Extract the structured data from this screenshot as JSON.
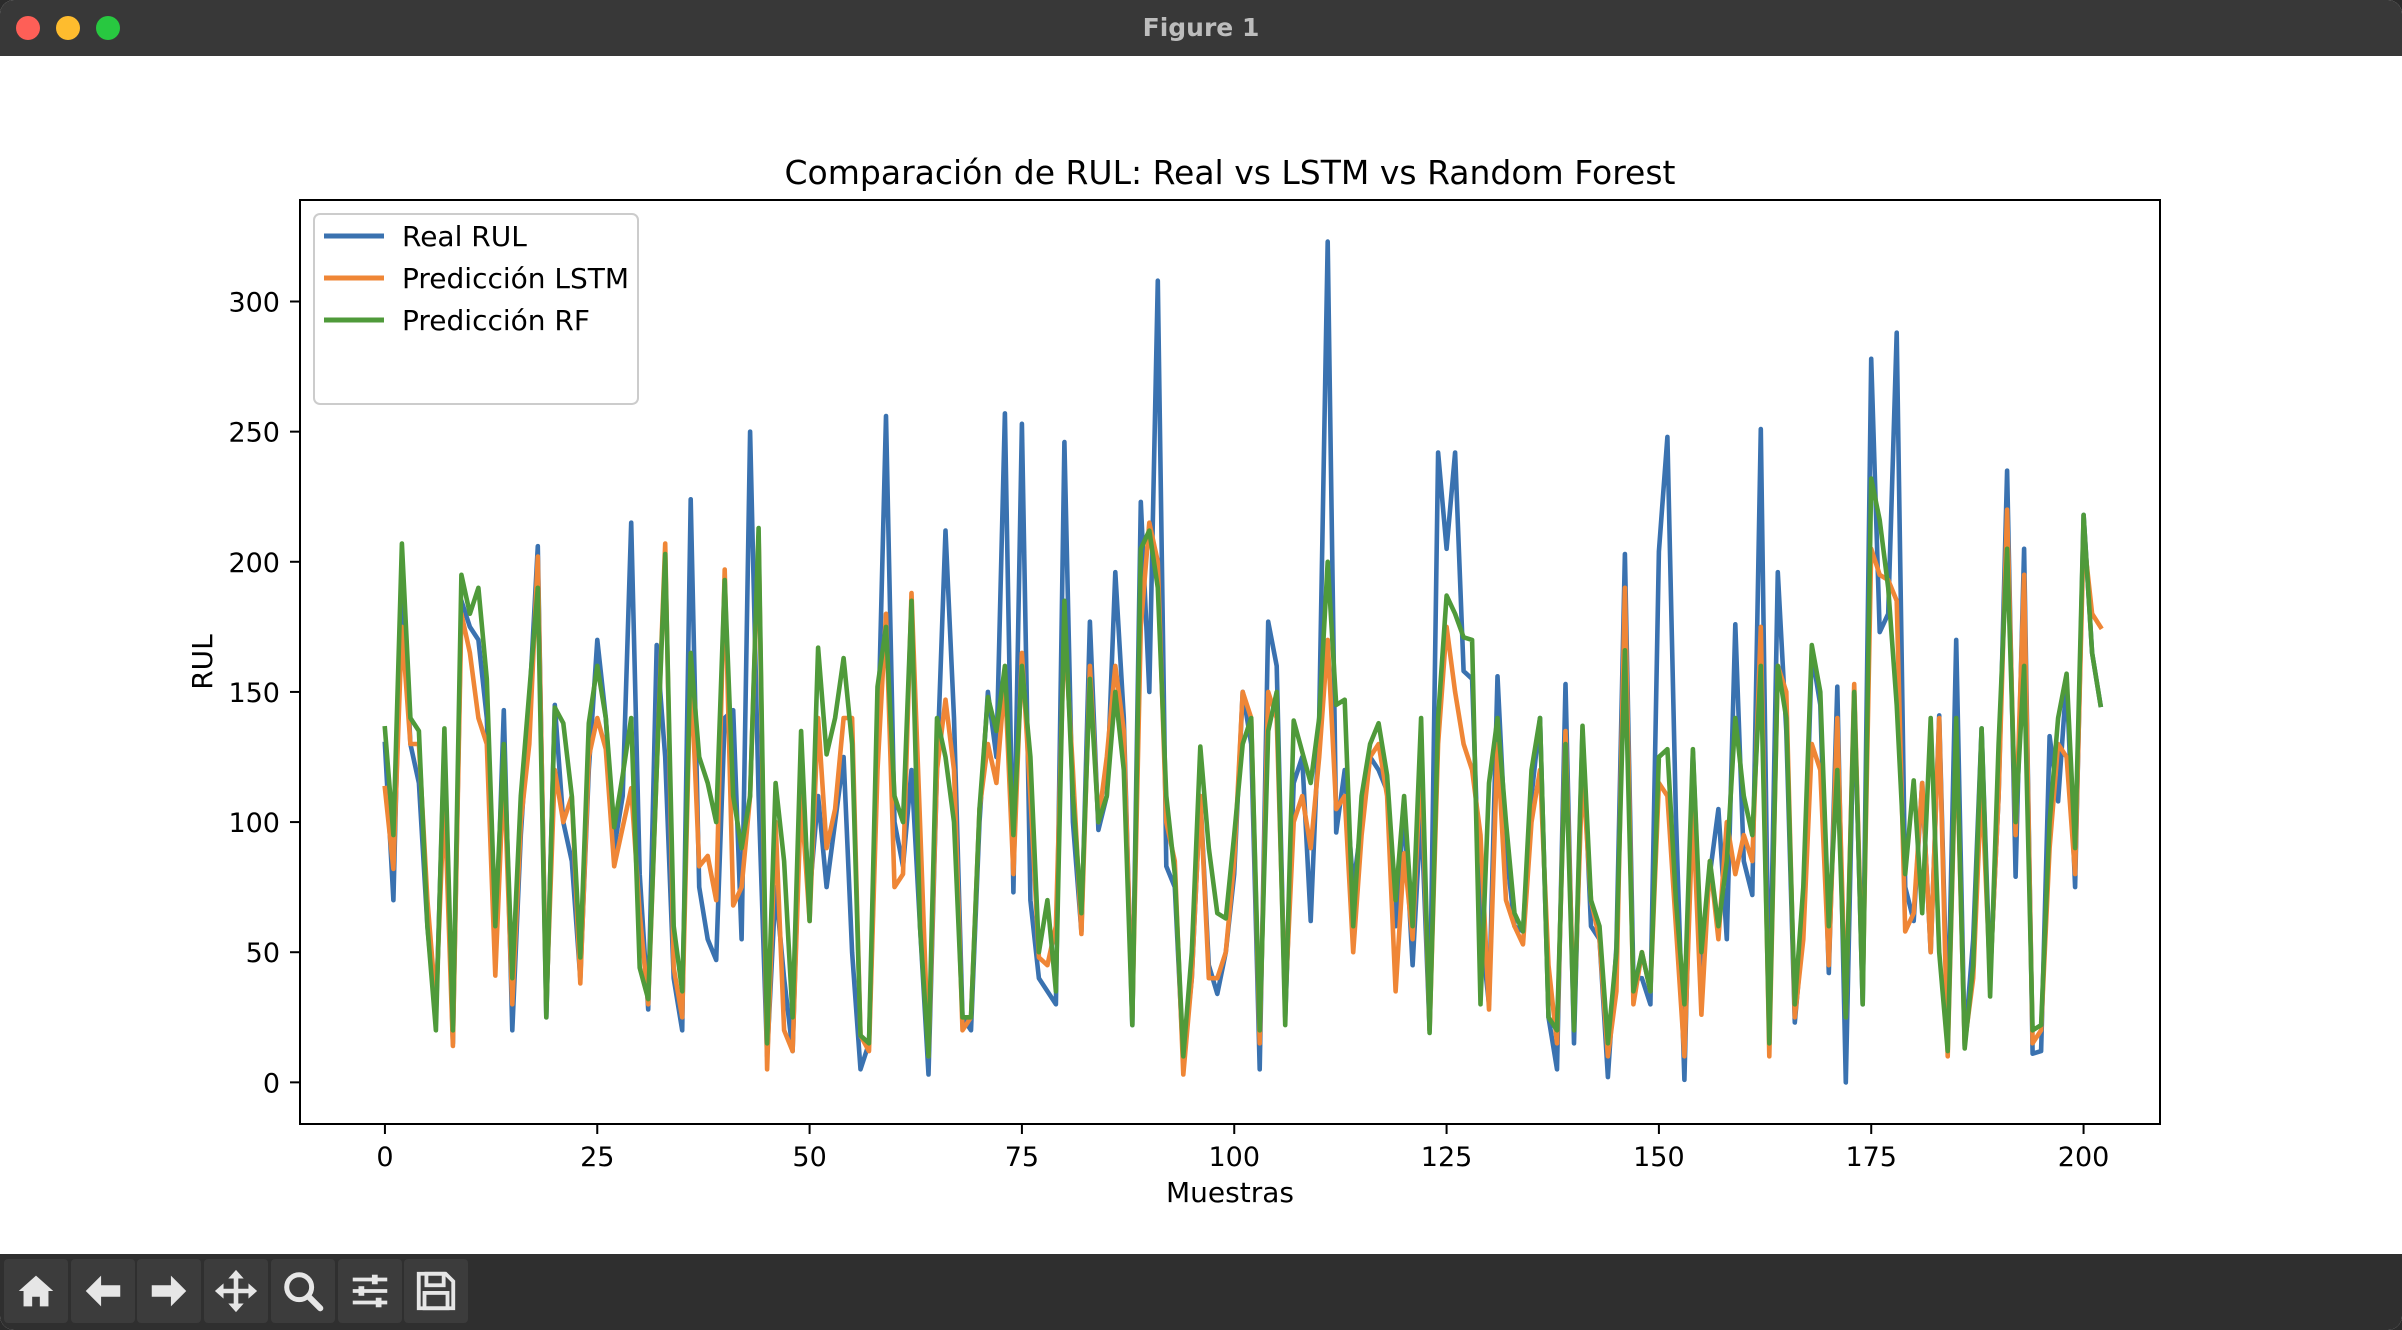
{
  "window": {
    "title": "Figure 1"
  },
  "toolbar": {
    "buttons": [
      {
        "icon": "home-icon",
        "label": "Home"
      },
      {
        "icon": "back-arrow-icon",
        "label": "Back"
      },
      {
        "icon": "forward-arrow-icon",
        "label": "Forward"
      },
      {
        "icon": "pan-icon",
        "label": "Pan"
      },
      {
        "icon": "zoom-icon",
        "label": "Zoom"
      },
      {
        "icon": "configure-subplots-icon",
        "label": "Subplots"
      },
      {
        "icon": "save-icon",
        "label": "Save"
      }
    ]
  },
  "chart_data": {
    "type": "line",
    "title": "Comparación de RUL: Real vs LSTM vs Random Forest",
    "xlabel": "Muestras",
    "ylabel": "RUL",
    "xlim": [
      -10,
      209
    ],
    "ylim": [
      -16,
      339
    ],
    "xticks": [
      0,
      25,
      50,
      75,
      100,
      125,
      150,
      175,
      200
    ],
    "yticks": [
      0,
      50,
      100,
      150,
      200,
      250,
      300
    ],
    "grid": false,
    "legend_position": "upper left",
    "colors": {
      "Real RUL": "#3a72b0",
      "Predicción LSTM": "#ef8636",
      "Predicción RF": "#4f9a3a"
    },
    "series": [
      {
        "name": "Real RUL",
        "color": "#3a72b0",
        "values": [
          130,
          70,
          200,
          130,
          115,
          60,
          25,
          130,
          15,
          185,
          175,
          170,
          140,
          45,
          143,
          20,
          95,
          145,
          206,
          25,
          145,
          100,
          85,
          40,
          120,
          170,
          140,
          90,
          110,
          215,
          80,
          28,
          168,
          125,
          40,
          20,
          224,
          75,
          55,
          47,
          140,
          143,
          55,
          250,
          110,
          10,
          75,
          40,
          12,
          117,
          72,
          110,
          75,
          100,
          125,
          50,
          5,
          15,
          125,
          256,
          100,
          83,
          120,
          60,
          3,
          120,
          212,
          140,
          25,
          20,
          100,
          150,
          125,
          257,
          73,
          253,
          70,
          40,
          35,
          30,
          246,
          100,
          58,
          177,
          97,
          110,
          196,
          140,
          22,
          223,
          150,
          308,
          83,
          75,
          8,
          40,
          110,
          45,
          34,
          50,
          80,
          150,
          130,
          5,
          177,
          160,
          25,
          115,
          125,
          62,
          140,
          323,
          96,
          120,
          75,
          100,
          125,
          120,
          112,
          60,
          105,
          45,
          105,
          20,
          242,
          205,
          242,
          158,
          155,
          60,
          30,
          156,
          90,
          60,
          58,
          110,
          140,
          25,
          5,
          153,
          15,
          135,
          60,
          55,
          2,
          52,
          203,
          40,
          40,
          30,
          204,
          248,
          102,
          1,
          127,
          45,
          80,
          105,
          55,
          176,
          85,
          72,
          251,
          20,
          196,
          135,
          23,
          60,
          165,
          145,
          42,
          152,
          0,
          150,
          30,
          278,
          173,
          180,
          288,
          75,
          62,
          115,
          50,
          141,
          20,
          170,
          14,
          55,
          136,
          40,
          110,
          235,
          79,
          205,
          11,
          12,
          133,
          108,
          155,
          75,
          218,
          165,
          145
        ]
      },
      {
        "name": "Predicción LSTM",
        "color": "#ef8636",
        "values": [
          113,
          82,
          175,
          130,
          130,
          70,
          30,
          110,
          14,
          180,
          165,
          140,
          130,
          41,
          120,
          30,
          100,
          130,
          202,
          30,
          120,
          100,
          110,
          38,
          125,
          140,
          128,
          83,
          98,
          113,
          65,
          30,
          120,
          207,
          44,
          25,
          160,
          83,
          87,
          70,
          197,
          68,
          75,
          110,
          210,
          5,
          100,
          20,
          12,
          110,
          62,
          140,
          90,
          105,
          140,
          140,
          18,
          12,
          120,
          180,
          75,
          80,
          188,
          100,
          10,
          120,
          147,
          120,
          20,
          25,
          105,
          130,
          115,
          155,
          80,
          165,
          110,
          48,
          45,
          60,
          175,
          120,
          57,
          160,
          100,
          125,
          160,
          135,
          25,
          175,
          215,
          200,
          100,
          85,
          3,
          40,
          110,
          40,
          40,
          50,
          85,
          150,
          140,
          15,
          150,
          140,
          30,
          100,
          110,
          90,
          125,
          170,
          105,
          110,
          50,
          95,
          125,
          130,
          110,
          35,
          88,
          55,
          125,
          20,
          130,
          175,
          150,
          130,
          120,
          95,
          28,
          130,
          70,
          60,
          53,
          100,
          120,
          45,
          15,
          135,
          25,
          120,
          70,
          55,
          10,
          35,
          190,
          30,
          50,
          35,
          115,
          110,
          60,
          10,
          105,
          26,
          85,
          55,
          100,
          80,
          95,
          85,
          175,
          10,
          160,
          150,
          25,
          55,
          130,
          120,
          45,
          140,
          25,
          153,
          35,
          205,
          195,
          193,
          185,
          58,
          65,
          115,
          50,
          140,
          10,
          135,
          15,
          40,
          115,
          40,
          110,
          220,
          95,
          195,
          15,
          20,
          90,
          130,
          125,
          80,
          210,
          180,
          175
        ]
      },
      {
        "name": "Predicción RF",
        "color": "#4f9a3a",
        "values": [
          136,
          95,
          207,
          140,
          135,
          60,
          20,
          136,
          20,
          195,
          180,
          190,
          155,
          60,
          130,
          40,
          110,
          150,
          190,
          25,
          144,
          138,
          110,
          48,
          138,
          160,
          140,
          98,
          118,
          140,
          44,
          32,
          120,
          203,
          60,
          35,
          165,
          125,
          115,
          100,
          193,
          110,
          90,
          110,
          213,
          15,
          115,
          85,
          25,
          135,
          62,
          167,
          126,
          140,
          163,
          130,
          18,
          15,
          152,
          175,
          110,
          100,
          185,
          60,
          10,
          140,
          125,
          100,
          25,
          25,
          105,
          148,
          135,
          160,
          95,
          160,
          125,
          50,
          70,
          35,
          185,
          110,
          65,
          155,
          100,
          110,
          150,
          120,
          22,
          205,
          212,
          190,
          110,
          80,
          10,
          50,
          129,
          90,
          65,
          63,
          95,
          130,
          140,
          20,
          135,
          150,
          22,
          139,
          127,
          115,
          140,
          200,
          145,
          147,
          60,
          110,
          130,
          138,
          118,
          70,
          110,
          60,
          140,
          19,
          140,
          187,
          180,
          171,
          170,
          30,
          115,
          140,
          100,
          65,
          58,
          120,
          140,
          25,
          20,
          130,
          20,
          137,
          70,
          60,
          15,
          50,
          166,
          35,
          50,
          35,
          125,
          128,
          70,
          30,
          128,
          50,
          85,
          60,
          85,
          140,
          110,
          95,
          160,
          15,
          160,
          140,
          30,
          75,
          168,
          150,
          60,
          120,
          25,
          150,
          30,
          232,
          216,
          190,
          145,
          80,
          116,
          65,
          140,
          50,
          12,
          140,
          13,
          45,
          136,
          33,
          130,
          205,
          100,
          160,
          20,
          22,
          100,
          140,
          157,
          90,
          218,
          165,
          145
        ]
      }
    ]
  }
}
